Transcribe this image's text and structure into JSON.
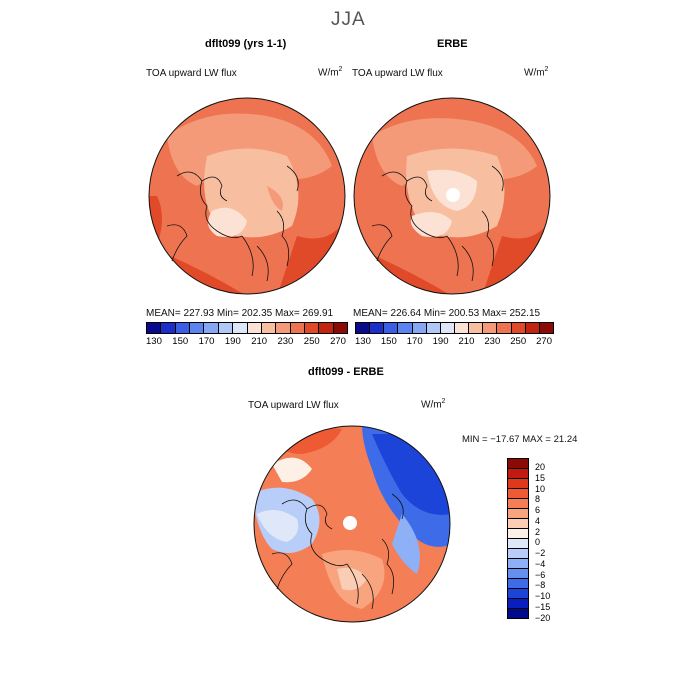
{
  "title": "JJA",
  "panel_left": {
    "name": "dflt099 (yrs 1-1)",
    "variable": "TOA upward LW flux",
    "units": "W/m",
    "units_exp": "2",
    "stats": "MEAN= 227.93  Min= 202.35  Max= 269.91",
    "mean": 227.93,
    "min": 202.35,
    "max": 269.91
  },
  "panel_right": {
    "name": "ERBE",
    "variable": "TOA upward LW flux",
    "units": "W/m",
    "units_exp": "2",
    "stats": "MEAN= 226.64  Min= 200.53  Max= 252.15",
    "mean": 226.64,
    "min": 200.53,
    "max": 252.15
  },
  "panel_diff": {
    "name": "dflt099 - ERBE",
    "variable": "TOA upward LW flux",
    "units": "W/m",
    "units_exp": "2",
    "stats": "MIN = −17.67 MAX =  21.24",
    "min": -17.67,
    "max": 21.24
  },
  "abs_colorbar": {
    "colors": [
      "#0a0a8c",
      "#1c2ec8",
      "#3a5ee6",
      "#5b84f0",
      "#86a8f4",
      "#b0c8f8",
      "#dde6f8",
      "#fbe2d4",
      "#f8bea0",
      "#f49a78",
      "#ee7350",
      "#e04a28",
      "#c22410",
      "#8c0a06"
    ],
    "ticks": [
      "130",
      "150",
      "170",
      "190",
      "210",
      "230",
      "250",
      "270"
    ]
  },
  "diff_colorbar": {
    "colors": [
      "#8c0a06",
      "#c21a10",
      "#e0381c",
      "#ee5a34",
      "#f47e56",
      "#f8a47e",
      "#fbcdb4",
      "#fdf0e6",
      "#dfe8f8",
      "#b8cef8",
      "#8eb0f6",
      "#6690f0",
      "#3e6ce8",
      "#1c44d8",
      "#0a1ec0",
      "#020a8c"
    ],
    "labels": [
      "20",
      "15",
      "10",
      "8",
      "6",
      "4",
      "2",
      "0",
      "−2",
      "−4",
      "−6",
      "−8",
      "−10",
      "−15",
      "−20"
    ]
  }
}
